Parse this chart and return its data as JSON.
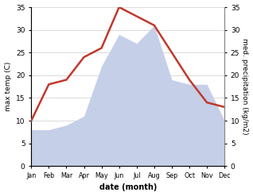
{
  "months": [
    "Jan",
    "Feb",
    "Mar",
    "Apr",
    "May",
    "Jun",
    "Jul",
    "Aug",
    "Sep",
    "Oct",
    "Nov",
    "Dec"
  ],
  "temperature": [
    10,
    18,
    19,
    24,
    26,
    35,
    33,
    31,
    25,
    19,
    14,
    13
  ],
  "precipitation": [
    8,
    8,
    9,
    11,
    22,
    29,
    27,
    31,
    19,
    18,
    18,
    10
  ],
  "temp_color": "#c0392b",
  "precip_fill_color": "#c5cfe8",
  "ylabel_left": "max temp (C)",
  "ylabel_right": "med. precipitation (kg/m2)",
  "xlabel": "date (month)",
  "ylim": [
    0,
    35
  ],
  "yticks": [
    0,
    5,
    10,
    15,
    20,
    25,
    30,
    35
  ],
  "bg_color": "#ffffff"
}
